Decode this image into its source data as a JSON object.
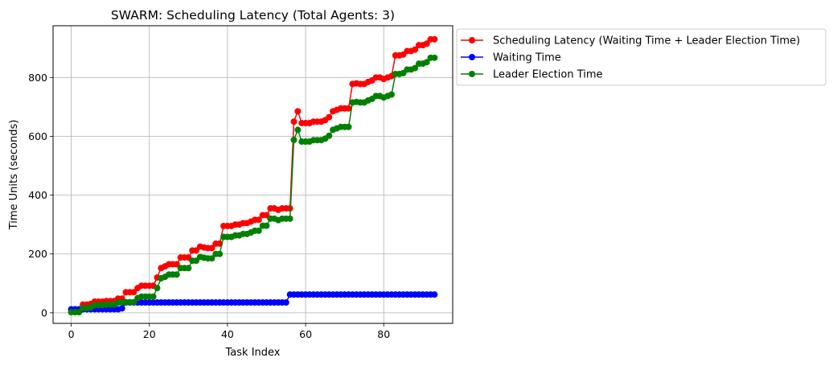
{
  "chart_data": {
    "type": "line",
    "title": "SWARM: Scheduling Latency (Total Agents: 3)",
    "xlabel": "Task Index",
    "ylabel": "Time Units (seconds)",
    "xlim": [
      -4.65,
      97.65
    ],
    "ylim": [
      -36,
      976
    ],
    "xticks": [
      0,
      20,
      40,
      60,
      80
    ],
    "yticks": [
      0,
      200,
      400,
      600,
      800
    ],
    "grid": true,
    "legend_position": "outside-top-right",
    "x": [
      0,
      1,
      2,
      3,
      4,
      5,
      6,
      7,
      8,
      9,
      10,
      11,
      12,
      13,
      14,
      15,
      16,
      17,
      18,
      19,
      20,
      21,
      22,
      23,
      24,
      25,
      26,
      27,
      28,
      29,
      30,
      31,
      32,
      33,
      34,
      35,
      36,
      37,
      38,
      39,
      40,
      41,
      42,
      43,
      44,
      45,
      46,
      47,
      48,
      49,
      50,
      51,
      52,
      53,
      54,
      55,
      56,
      57,
      58,
      59,
      60,
      61,
      62,
      63,
      64,
      65,
      66,
      67,
      68,
      69,
      70,
      71,
      72,
      73,
      74,
      75,
      76,
      77,
      78,
      79,
      80,
      81,
      82,
      83,
      84,
      85,
      86,
      87,
      88,
      89,
      90,
      91,
      92,
      93
    ],
    "series": [
      {
        "name": "Scheduling Latency (Waiting Time + Leader Election Time)",
        "color": "#ff0000",
        "values": [
          10,
          10,
          10,
          28,
          28,
          30,
          38,
          38,
          38,
          40,
          40,
          40,
          48,
          48,
          70,
          70,
          70,
          84,
          92,
          92,
          92,
          92,
          120,
          152,
          158,
          165,
          165,
          165,
          188,
          188,
          188,
          212,
          212,
          225,
          222,
          220,
          220,
          235,
          235,
          295,
          295,
          295,
          300,
          300,
          305,
          305,
          310,
          316,
          316,
          332,
          332,
          355,
          355,
          350,
          355,
          355,
          355,
          650,
          685,
          645,
          645,
          645,
          650,
          650,
          650,
          655,
          665,
          685,
          690,
          695,
          695,
          695,
          778,
          780,
          778,
          778,
          785,
          790,
          800,
          800,
          795,
          800,
          805,
          875,
          875,
          878,
          890,
          890,
          895,
          910,
          910,
          915,
          930,
          930
        ]
      },
      {
        "name": "Waiting Time",
        "color": "#0000ff",
        "values": [
          12,
          12,
          12,
          12,
          12,
          12,
          12,
          12,
          12,
          12,
          12,
          12,
          12,
          15,
          35,
          35,
          35,
          35,
          35,
          35,
          35,
          35,
          35,
          35,
          35,
          35,
          35,
          35,
          35,
          35,
          35,
          35,
          35,
          35,
          35,
          35,
          35,
          35,
          35,
          35,
          35,
          35,
          35,
          35,
          35,
          35,
          35,
          35,
          35,
          35,
          35,
          35,
          35,
          35,
          35,
          35,
          62,
          62,
          62,
          62,
          62,
          62,
          62,
          62,
          62,
          62,
          62,
          62,
          62,
          62,
          62,
          62,
          62,
          62,
          62,
          62,
          62,
          62,
          62,
          62,
          62,
          62,
          62,
          62,
          62,
          62,
          62,
          62,
          62,
          62,
          62,
          62,
          62,
          62
        ]
      },
      {
        "name": "Leader Election Time",
        "color": "#008000",
        "values": [
          2,
          2,
          2,
          16,
          16,
          18,
          26,
          26,
          26,
          28,
          28,
          28,
          35,
          35,
          36,
          36,
          36,
          50,
          55,
          55,
          55,
          55,
          84,
          117,
          122,
          130,
          130,
          130,
          152,
          152,
          152,
          177,
          177,
          190,
          187,
          185,
          185,
          200,
          200,
          258,
          258,
          258,
          263,
          263,
          268,
          268,
          273,
          279,
          279,
          296,
          296,
          320,
          320,
          315,
          320,
          320,
          320,
          588,
          622,
          582,
          582,
          582,
          587,
          587,
          587,
          592,
          602,
          622,
          627,
          632,
          632,
          632,
          715,
          717,
          715,
          715,
          722,
          727,
          737,
          737,
          732,
          737,
          742,
          812,
          812,
          815,
          827,
          827,
          832,
          847,
          847,
          852,
          867,
          867
        ]
      }
    ]
  }
}
